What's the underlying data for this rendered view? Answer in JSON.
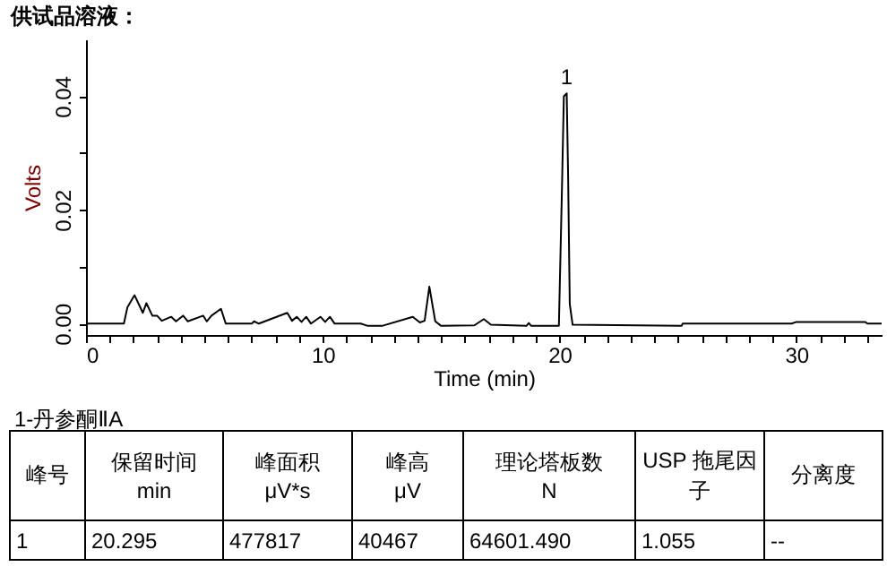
{
  "chart_data": {
    "type": "line",
    "title": "供试品溶液：",
    "xlabel": "Time (min)",
    "ylabel": "Volts",
    "x": [
      0,
      1.6,
      1.75,
      2.05,
      2.4,
      2.55,
      2.8,
      3.0,
      3.2,
      3.6,
      3.8,
      4.1,
      4.3,
      4.95,
      5.1,
      5.3,
      5.7,
      5.9,
      7.0,
      7.1,
      7.3,
      8.5,
      8.7,
      8.9,
      9.1,
      9.3,
      9.5,
      9.9,
      10.1,
      10.3,
      10.5,
      11.6,
      11.9,
      12.5,
      13.8,
      14.1,
      14.3,
      14.5,
      14.75,
      15.0,
      16.4,
      16.8,
      17.1,
      18.6,
      18.7,
      18.8,
      19.97,
      20.1,
      20.18,
      20.3,
      20.36,
      20.43,
      20.55,
      25.15,
      25.2,
      29.8,
      30.0,
      32.9,
      33.0,
      33.6
    ],
    "series": [
      {
        "color": "#000000",
        "values": [
          0,
          0,
          0.0029,
          0.005,
          0.0019,
          0.0036,
          0.0014,
          0.0014,
          0.0005,
          0.0012,
          0.0004,
          0.0014,
          0.0004,
          0.0014,
          0.0004,
          0.0014,
          0.0026,
          0,
          0,
          0.0004,
          0,
          0.0019,
          0.0005,
          0.0012,
          0.0003,
          0.0012,
          0,
          0.0012,
          0.0003,
          0.0012,
          0,
          0,
          -0.0004,
          -0.0004,
          0.0012,
          0.0002,
          0.0005,
          0.0065,
          0.0004,
          -0.0004,
          -0.0003,
          0.0008,
          -0.0002,
          -0.0004,
          0.0001,
          -0.0004,
          -0.0004,
          0.0237,
          0.04,
          0.0405,
          0.026,
          0.0034,
          -0.0002,
          -0.0004,
          0,
          0,
          0.0003,
          0.0003,
          0,
          0
        ]
      }
    ],
    "xlim": [
      0,
      33.6
    ],
    "ylim": [
      -0.002,
      0.05
    ],
    "xticks": [
      0,
      {
        "value": 1,
        "label": null
      },
      {
        "value": 2,
        "label": null
      },
      {
        "value": 3,
        "label": null
      },
      {
        "value": 4,
        "label": null
      },
      {
        "value": 5,
        "label": null
      },
      {
        "value": 6,
        "label": null
      },
      {
        "value": 7,
        "label": null
      },
      {
        "value": 8,
        "label": null
      },
      {
        "value": 9,
        "label": null
      },
      10,
      {
        "value": 11,
        "label": null
      },
      {
        "value": 12,
        "label": null
      },
      {
        "value": 13,
        "label": null
      },
      {
        "value": 14,
        "label": null
      },
      {
        "value": 15,
        "label": null
      },
      {
        "value": 16,
        "label": null
      },
      {
        "value": 17,
        "label": null
      },
      {
        "value": 18,
        "label": null
      },
      {
        "value": 19,
        "label": null
      },
      20,
      {
        "value": 21,
        "label": null
      },
      {
        "value": 22,
        "label": null
      },
      {
        "value": 23,
        "label": null
      },
      {
        "value": 24,
        "label": null
      },
      {
        "value": 25,
        "label": null
      },
      {
        "value": 26,
        "label": null
      },
      {
        "value": 27,
        "label": null
      },
      {
        "value": 28,
        "label": null
      },
      {
        "value": 29,
        "label": null
      },
      30,
      {
        "value": 31,
        "label": null
      },
      {
        "value": 32,
        "label": null
      },
      {
        "value": 33,
        "label": null
      }
    ],
    "yticks": [
      {
        "value": 0,
        "label": "0.00"
      },
      {
        "value": 0.01,
        "label": null
      },
      {
        "value": 0.02,
        "label": "0.02"
      },
      {
        "value": 0.03,
        "label": null
      },
      {
        "value": 0.04,
        "label": "0.04"
      }
    ],
    "grid": false,
    "legend": false,
    "marker": "none",
    "line_style": "solid",
    "annotations": [
      {
        "text": "1",
        "x": 20.295,
        "y": 0.0405
      },
      "1-丹参酮ⅡA",
      "峰号",
      "保留时间\nmin",
      "峰面积\nμV*s",
      "峰高\nμV",
      "理论塔板数\nN",
      "USP 拖尾因子",
      "分离度",
      "1",
      "20.295",
      "477817",
      "40467",
      "64601.490",
      "1.055",
      "--"
    ]
  }
}
